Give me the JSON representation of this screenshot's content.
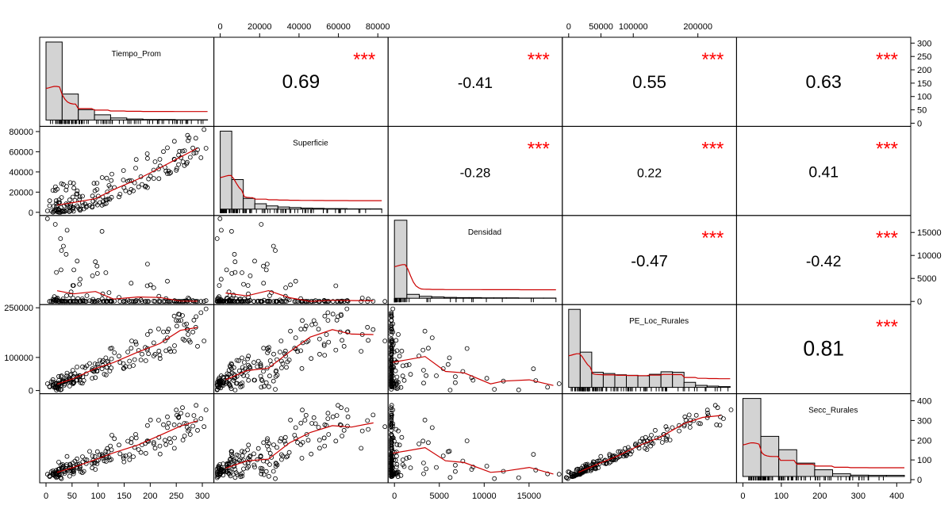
{
  "chart_data": {
    "type": "scatter",
    "title": "",
    "grid": false,
    "variables": [
      "Tiempo_Prom",
      "Superficie",
      "Densidad",
      "PE_Loc_Rurales",
      "Secc_Rurales"
    ],
    "correlations": [
      {
        "row": 0,
        "col": 1,
        "value": "0.69",
        "stars": "***"
      },
      {
        "row": 0,
        "col": 2,
        "value": "-0.41",
        "stars": "***"
      },
      {
        "row": 0,
        "col": 3,
        "value": "0.55",
        "stars": "***"
      },
      {
        "row": 0,
        "col": 4,
        "value": "0.63",
        "stars": "***"
      },
      {
        "row": 1,
        "col": 2,
        "value": "-0.28",
        "stars": "***"
      },
      {
        "row": 1,
        "col": 3,
        "value": "0.22",
        "stars": "***"
      },
      {
        "row": 1,
        "col": 4,
        "value": "0.41",
        "stars": "***"
      },
      {
        "row": 2,
        "col": 3,
        "value": "-0.47",
        "stars": "***"
      },
      {
        "row": 2,
        "col": 4,
        "value": "-0.42",
        "stars": "***"
      },
      {
        "row": 3,
        "col": 4,
        "value": "0.81",
        "stars": "***"
      }
    ],
    "axes": {
      "Tiempo_Prom": {
        "range": [
          0,
          310
        ],
        "ticks": [
          "0",
          "50",
          "100",
          "150",
          "200",
          "250",
          "300"
        ]
      },
      "Superficie": {
        "range": [
          0,
          82000
        ],
        "ticks": [
          "0",
          "20000",
          "40000",
          "60000",
          "80000"
        ]
      },
      "Densidad": {
        "range": [
          0,
          18000
        ],
        "ticks": [
          "0",
          "5000",
          "10000",
          "15000"
        ]
      },
      "PE_Loc_Rurales": {
        "range": [
          0,
          250000
        ],
        "ticks": [
          "0",
          "50000",
          "100000",
          "200000"
        ],
        "left_ticks": [
          "0",
          "100000",
          "250000"
        ]
      },
      "Secc_Rurales": {
        "range": [
          0,
          420
        ],
        "ticks": [
          "0",
          "100",
          "200",
          "300",
          "400"
        ]
      }
    },
    "histogram_counts": {
      "Tiempo_Prom": [
        300,
        100,
        40,
        20,
        8,
        4,
        2,
        2,
        1,
        1
      ],
      "Superficie": [
        290,
        110,
        40,
        20,
        12,
        8,
        6,
        4,
        3,
        2,
        2,
        1,
        1,
        1
      ],
      "Densidad": [
        360,
        18,
        9,
        6,
        4,
        3,
        3,
        2,
        2,
        2,
        1,
        1,
        1
      ],
      "PE_Loc_Rurales": [
        310,
        140,
        60,
        55,
        50,
        48,
        46,
        52,
        62,
        60,
        20,
        8,
        5,
        3
      ],
      "Secc_Rurales": [
        350,
        180,
        120,
        60,
        30,
        12,
        6,
        5,
        5
      ]
    },
    "stars_color": "#ff0000",
    "smooth_color": "#cc0000",
    "histogram_fill": "#d3d3d3"
  }
}
